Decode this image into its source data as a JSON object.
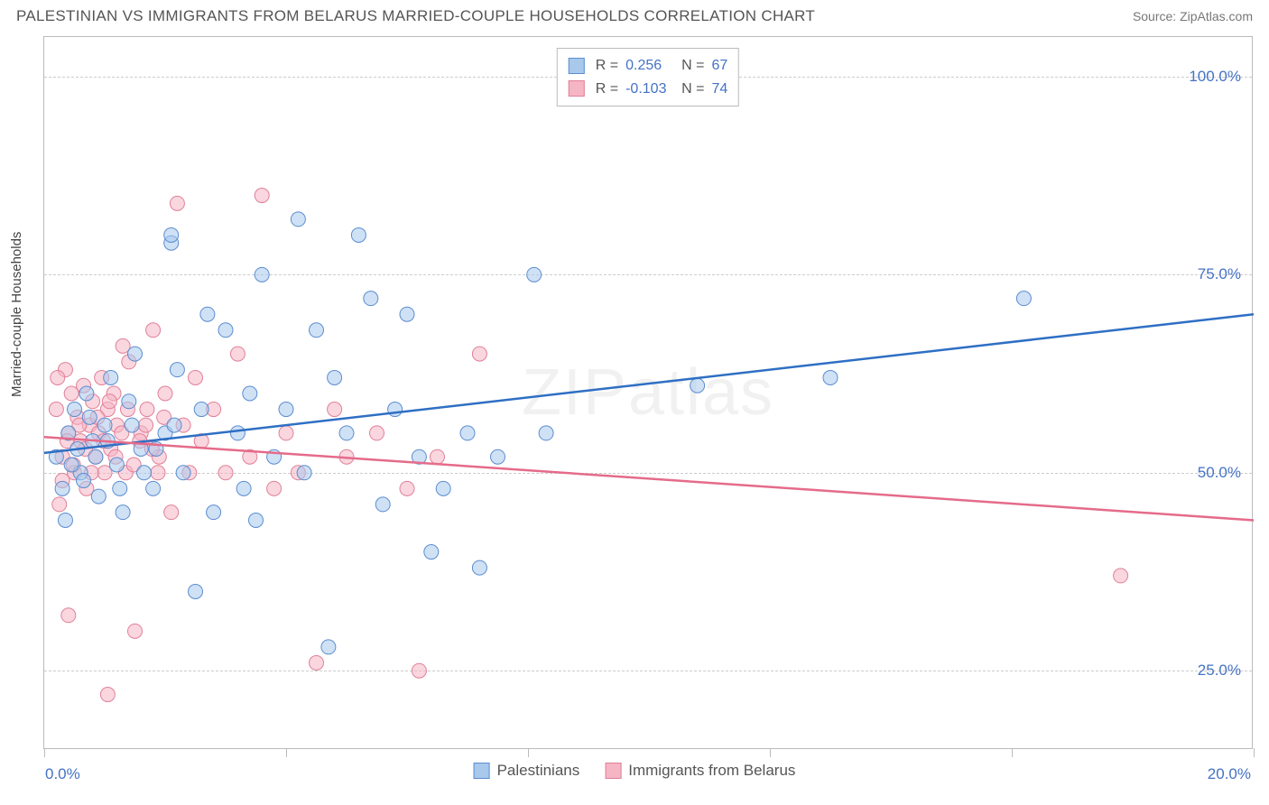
{
  "header": {
    "title": "PALESTINIAN VS IMMIGRANTS FROM BELARUS MARRIED-COUPLE HOUSEHOLDS CORRELATION CHART",
    "source": "Source: ZipAtlas.com"
  },
  "chart": {
    "type": "scatter",
    "y_axis_label": "Married-couple Households",
    "watermark": "ZIPatlas",
    "background_color": "#ffffff",
    "border_color": "#bbbbbb",
    "grid_color": "#cccccc",
    "xlim": [
      0,
      20
    ],
    "ylim": [
      15,
      105
    ],
    "y_ticks": [
      25,
      50,
      75,
      100
    ],
    "y_tick_labels": [
      "25.0%",
      "50.0%",
      "75.0%",
      "100.0%"
    ],
    "x_ticks": [
      0,
      4,
      8,
      12,
      16,
      20
    ],
    "x_tick_labels_left": "0.0%",
    "x_tick_labels_right": "20.0%",
    "y_label_color": "#4472c4",
    "x_label_color": "#4472c4",
    "marker_radius": 8,
    "marker_opacity": 0.55,
    "line_width": 2.5,
    "series": [
      {
        "name": "Palestinians",
        "fill_color": "#a8c8ec",
        "stroke_color": "#5b8dd0",
        "line_color": "#2e6fc4",
        "r_value": "0.256",
        "n_value": "67",
        "trend": {
          "x1": 0,
          "y1": 52.5,
          "x2": 20,
          "y2": 70
        },
        "points": [
          [
            0.2,
            52
          ],
          [
            0.3,
            48
          ],
          [
            0.4,
            55
          ],
          [
            0.5,
            58
          ],
          [
            0.6,
            50
          ],
          [
            0.7,
            60
          ],
          [
            0.8,
            54
          ],
          [
            0.9,
            47
          ],
          [
            1.0,
            56
          ],
          [
            1.1,
            62
          ],
          [
            1.2,
            51
          ],
          [
            1.3,
            45
          ],
          [
            1.4,
            59
          ],
          [
            1.5,
            65
          ],
          [
            1.6,
            53
          ],
          [
            1.8,
            48
          ],
          [
            2.0,
            55
          ],
          [
            2.1,
            79
          ],
          [
            2.1,
            80
          ],
          [
            2.2,
            63
          ],
          [
            2.3,
            50
          ],
          [
            2.5,
            35
          ],
          [
            2.6,
            58
          ],
          [
            2.7,
            70
          ],
          [
            2.8,
            45
          ],
          [
            3.0,
            68
          ],
          [
            3.2,
            55
          ],
          [
            3.3,
            48
          ],
          [
            3.4,
            60
          ],
          [
            3.5,
            44
          ],
          [
            3.6,
            75
          ],
          [
            3.8,
            52
          ],
          [
            4.0,
            58
          ],
          [
            4.2,
            82
          ],
          [
            4.3,
            50
          ],
          [
            4.5,
            68
          ],
          [
            4.7,
            28
          ],
          [
            4.8,
            62
          ],
          [
            5.0,
            55
          ],
          [
            5.2,
            80
          ],
          [
            5.4,
            72
          ],
          [
            5.6,
            46
          ],
          [
            5.8,
            58
          ],
          [
            6.0,
            70
          ],
          [
            6.2,
            52
          ],
          [
            6.4,
            40
          ],
          [
            6.6,
            48
          ],
          [
            7.0,
            55
          ],
          [
            7.2,
            38
          ],
          [
            7.5,
            52
          ],
          [
            8.1,
            75
          ],
          [
            8.3,
            55
          ],
          [
            10.8,
            61
          ],
          [
            13.0,
            62
          ],
          [
            16.2,
            72
          ],
          [
            0.35,
            44
          ],
          [
            0.45,
            51
          ],
          [
            0.55,
            53
          ],
          [
            0.65,
            49
          ],
          [
            0.75,
            57
          ],
          [
            0.85,
            52
          ],
          [
            1.05,
            54
          ],
          [
            1.25,
            48
          ],
          [
            1.45,
            56
          ],
          [
            1.65,
            50
          ],
          [
            1.85,
            53
          ],
          [
            2.15,
            56
          ]
        ]
      },
      {
        "name": "Immigrants from Belarus",
        "fill_color": "#f5b5c4",
        "stroke_color": "#e08098",
        "line_color": "#e56b8a",
        "r_value": "-0.103",
        "n_value": "74",
        "trend": {
          "x1": 0,
          "y1": 54.5,
          "x2": 20,
          "y2": 44
        },
        "points": [
          [
            0.2,
            58
          ],
          [
            0.3,
            52
          ],
          [
            0.35,
            63
          ],
          [
            0.4,
            55
          ],
          [
            0.45,
            60
          ],
          [
            0.5,
            50
          ],
          [
            0.55,
            57
          ],
          [
            0.6,
            54
          ],
          [
            0.65,
            61
          ],
          [
            0.7,
            48
          ],
          [
            0.75,
            56
          ],
          [
            0.8,
            59
          ],
          [
            0.85,
            52
          ],
          [
            0.9,
            55
          ],
          [
            0.95,
            62
          ],
          [
            1.0,
            50
          ],
          [
            1.05,
            58
          ],
          [
            1.1,
            53
          ],
          [
            1.15,
            60
          ],
          [
            1.2,
            56
          ],
          [
            1.3,
            66
          ],
          [
            1.35,
            50
          ],
          [
            1.4,
            64
          ],
          [
            1.5,
            30
          ],
          [
            1.6,
            55
          ],
          [
            1.7,
            58
          ],
          [
            1.8,
            68
          ],
          [
            1.9,
            52
          ],
          [
            2.0,
            60
          ],
          [
            2.1,
            45
          ],
          [
            2.2,
            84
          ],
          [
            2.3,
            56
          ],
          [
            2.4,
            50
          ],
          [
            2.5,
            62
          ],
          [
            2.6,
            54
          ],
          [
            2.8,
            58
          ],
          [
            3.0,
            50
          ],
          [
            3.2,
            65
          ],
          [
            3.4,
            52
          ],
          [
            3.6,
            85
          ],
          [
            3.8,
            48
          ],
          [
            4.0,
            55
          ],
          [
            4.2,
            50
          ],
          [
            4.5,
            26
          ],
          [
            4.8,
            58
          ],
          [
            5.0,
            52
          ],
          [
            5.5,
            55
          ],
          [
            6.0,
            48
          ],
          [
            6.2,
            25
          ],
          [
            6.5,
            52
          ],
          [
            7.2,
            65
          ],
          [
            1.05,
            22
          ],
          [
            0.4,
            32
          ],
          [
            0.25,
            46
          ],
          [
            0.3,
            49
          ],
          [
            0.38,
            54
          ],
          [
            0.48,
            51
          ],
          [
            0.58,
            56
          ],
          [
            0.68,
            53
          ],
          [
            0.78,
            50
          ],
          [
            0.88,
            57
          ],
          [
            0.98,
            54
          ],
          [
            1.08,
            59
          ],
          [
            1.18,
            52
          ],
          [
            1.28,
            55
          ],
          [
            1.38,
            58
          ],
          [
            1.48,
            51
          ],
          [
            1.58,
            54
          ],
          [
            1.68,
            56
          ],
          [
            1.78,
            53
          ],
          [
            1.88,
            50
          ],
          [
            1.98,
            57
          ],
          [
            17.8,
            37
          ],
          [
            0.22,
            62
          ]
        ]
      }
    ],
    "legend_bottom": [
      {
        "label": "Palestinians",
        "series": 0
      },
      {
        "label": "Immigrants from Belarus",
        "series": 1
      }
    ]
  }
}
